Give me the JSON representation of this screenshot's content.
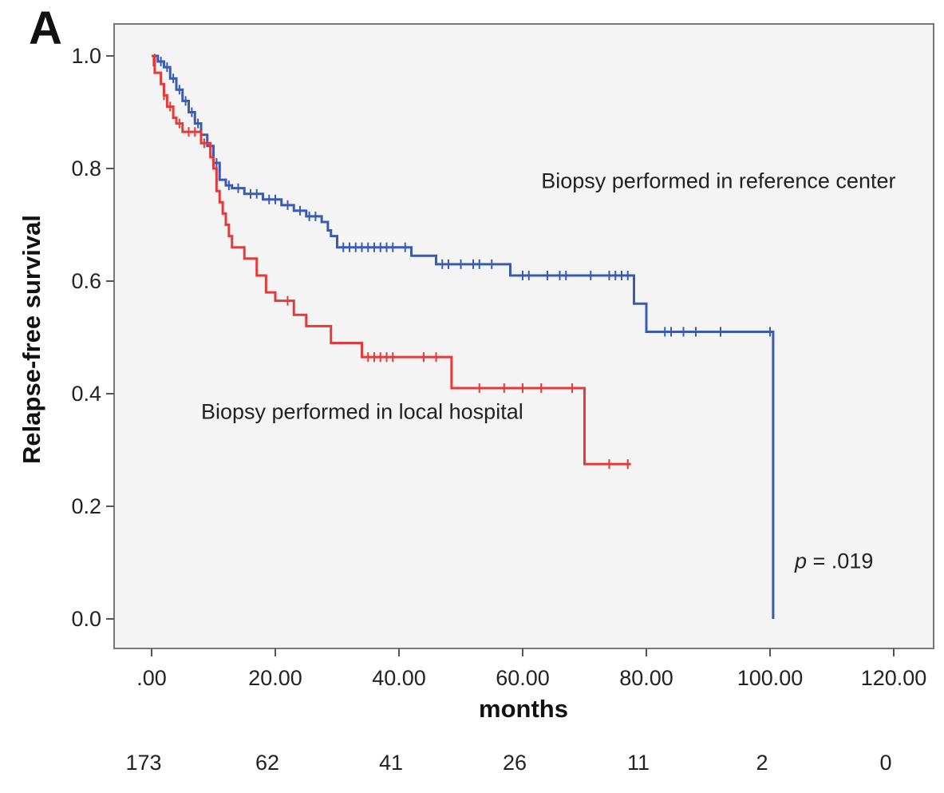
{
  "panel_label": "A",
  "chart_data": {
    "type": "line",
    "subtype": "kaplan-meier",
    "xlabel": "months",
    "ylabel": "Relapse-free survival",
    "xlim": [
      0,
      120
    ],
    "ylim": [
      0,
      1
    ],
    "x_ticks": [
      0,
      20,
      40,
      60,
      80,
      100,
      120
    ],
    "x_tick_labels": [
      ".00",
      "20.00",
      "40.00",
      "60.00",
      "80.00",
      "100.00",
      "120.00"
    ],
    "y_ticks": [
      0,
      0.2,
      0.4,
      0.6,
      0.8,
      1.0
    ],
    "y_tick_labels": [
      "0.0",
      "0.2",
      "0.4",
      "0.6",
      "0.8",
      "1.0"
    ],
    "grid": false,
    "background": "#f4f4f4",
    "series": [
      {
        "name": "Biopsy performed in reference center",
        "color": "#3a5bb5",
        "steps": [
          [
            0,
            1.0
          ],
          [
            1,
            0.99
          ],
          [
            2,
            0.98
          ],
          [
            3,
            0.96
          ],
          [
            4,
            0.94
          ],
          [
            5,
            0.92
          ],
          [
            6,
            0.9
          ],
          [
            7,
            0.88
          ],
          [
            8,
            0.86
          ],
          [
            9,
            0.84
          ],
          [
            10,
            0.81
          ],
          [
            11,
            0.78
          ],
          [
            12,
            0.77
          ],
          [
            13,
            0.765
          ],
          [
            15,
            0.755
          ],
          [
            18,
            0.745
          ],
          [
            21,
            0.735
          ],
          [
            23,
            0.725
          ],
          [
            25,
            0.715
          ],
          [
            27.5,
            0.705
          ],
          [
            28.5,
            0.69
          ],
          [
            29,
            0.68
          ],
          [
            30,
            0.66
          ],
          [
            42,
            0.645
          ],
          [
            46,
            0.63
          ],
          [
            58,
            0.61
          ],
          [
            78,
            0.56
          ],
          [
            80,
            0.51
          ],
          [
            100.5,
            0.0
          ]
        ],
        "end_x": 100.5,
        "censors": [
          [
            0.5,
            0.995
          ],
          [
            1.5,
            0.99
          ],
          [
            2.5,
            0.98
          ],
          [
            3.5,
            0.96
          ],
          [
            4.5,
            0.94
          ],
          [
            5.5,
            0.92
          ],
          [
            6.5,
            0.9
          ],
          [
            7.5,
            0.88
          ],
          [
            10.5,
            0.81
          ],
          [
            12.5,
            0.77
          ],
          [
            14,
            0.765
          ],
          [
            16,
            0.755
          ],
          [
            17,
            0.755
          ],
          [
            19,
            0.745
          ],
          [
            20,
            0.745
          ],
          [
            22,
            0.735
          ],
          [
            24,
            0.725
          ],
          [
            25.5,
            0.715
          ],
          [
            26.5,
            0.715
          ],
          [
            31,
            0.66
          ],
          [
            32,
            0.66
          ],
          [
            33,
            0.66
          ],
          [
            34,
            0.66
          ],
          [
            35,
            0.66
          ],
          [
            36,
            0.66
          ],
          [
            37,
            0.66
          ],
          [
            38,
            0.66
          ],
          [
            39,
            0.66
          ],
          [
            41,
            0.66
          ],
          [
            47,
            0.63
          ],
          [
            48,
            0.63
          ],
          [
            50,
            0.63
          ],
          [
            52,
            0.63
          ],
          [
            53,
            0.63
          ],
          [
            55,
            0.63
          ],
          [
            60,
            0.61
          ],
          [
            61,
            0.61
          ],
          [
            64,
            0.61
          ],
          [
            66,
            0.61
          ],
          [
            67,
            0.61
          ],
          [
            71,
            0.61
          ],
          [
            74,
            0.61
          ],
          [
            75,
            0.61
          ],
          [
            76,
            0.61
          ],
          [
            77,
            0.61
          ],
          [
            83,
            0.51
          ],
          [
            84,
            0.51
          ],
          [
            86,
            0.51
          ],
          [
            88,
            0.51
          ],
          [
            92,
            0.51
          ],
          [
            100,
            0.51
          ]
        ]
      },
      {
        "name": "Biopsy performed in local hospital",
        "color": "#e53a3a",
        "steps": [
          [
            0,
            1.0
          ],
          [
            0.5,
            0.97
          ],
          [
            1.5,
            0.95
          ],
          [
            2,
            0.93
          ],
          [
            2.5,
            0.91
          ],
          [
            3.5,
            0.89
          ],
          [
            4,
            0.88
          ],
          [
            5,
            0.865
          ],
          [
            8,
            0.845
          ],
          [
            9.5,
            0.82
          ],
          [
            10,
            0.8
          ],
          [
            10.5,
            0.76
          ],
          [
            11,
            0.74
          ],
          [
            11.5,
            0.72
          ],
          [
            12,
            0.7
          ],
          [
            12.5,
            0.68
          ],
          [
            13,
            0.66
          ],
          [
            15,
            0.64
          ],
          [
            17,
            0.61
          ],
          [
            18.5,
            0.58
          ],
          [
            20,
            0.565
          ],
          [
            23,
            0.54
          ],
          [
            25,
            0.52
          ],
          [
            29,
            0.49
          ],
          [
            34,
            0.465
          ],
          [
            48.5,
            0.41
          ],
          [
            70,
            0.275
          ],
          [
            77.5,
            0.275
          ]
        ],
        "end_x": 77.5,
        "censors": [
          [
            0.3,
            0.99
          ],
          [
            2,
            0.93
          ],
          [
            3,
            0.91
          ],
          [
            4.5,
            0.88
          ],
          [
            6,
            0.865
          ],
          [
            7,
            0.865
          ],
          [
            8.5,
            0.845
          ],
          [
            22,
            0.565
          ],
          [
            35,
            0.465
          ],
          [
            36,
            0.465
          ],
          [
            37,
            0.465
          ],
          [
            38,
            0.465
          ],
          [
            39,
            0.465
          ],
          [
            44,
            0.465
          ],
          [
            46,
            0.465
          ],
          [
            53,
            0.41
          ],
          [
            57,
            0.41
          ],
          [
            60,
            0.41
          ],
          [
            63,
            0.41
          ],
          [
            68,
            0.41
          ],
          [
            74,
            0.275
          ],
          [
            77,
            0.275
          ]
        ]
      }
    ],
    "annotations": [
      {
        "text": "Biopsy performed in reference center",
        "x": 63,
        "y": 0.765
      },
      {
        "text": "Biopsy performed in local hospital",
        "x": 8,
        "y": 0.355
      },
      {
        "text_italic": "p",
        "text": " = .019",
        "x": 104,
        "y": 0.09
      }
    ],
    "numbers_at_risk": [
      "173",
      "62",
      "41",
      "26",
      "11",
      "2",
      "0"
    ]
  }
}
